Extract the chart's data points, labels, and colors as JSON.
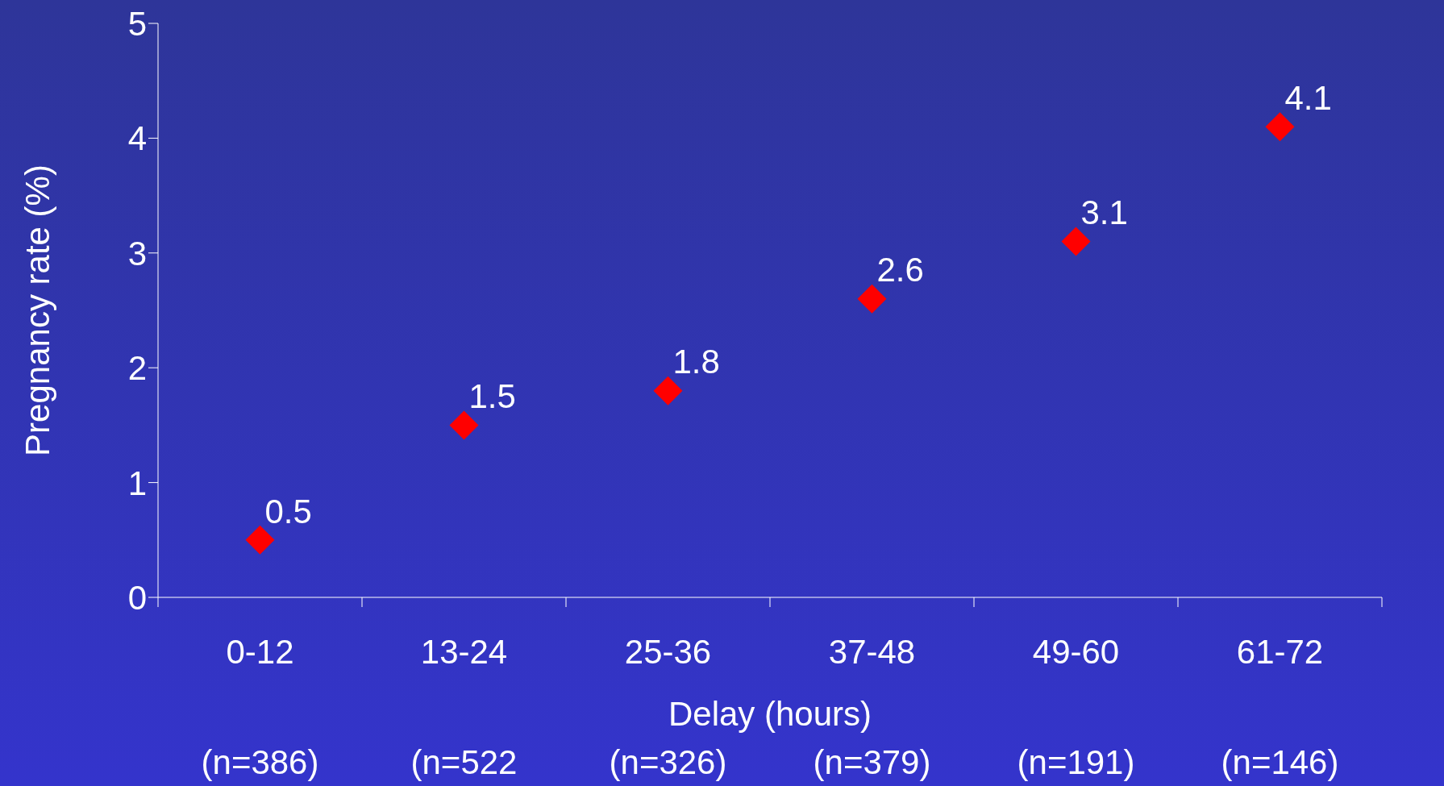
{
  "chart_data": {
    "type": "scatter",
    "xlabel": "Delay (hours)",
    "ylabel": "Pregnancy rate (%)",
    "categories": [
      "0-12",
      "13-24",
      "25-36",
      "37-48",
      "49-60",
      "61-72"
    ],
    "values": [
      0.5,
      1.5,
      1.8,
      2.6,
      3.1,
      4.1
    ],
    "color": "#ff0000",
    "marker": "diamond",
    "data_labels": true,
    "ylim": [
      0,
      5
    ],
    "yticks": [
      0,
      1,
      2,
      3,
      4,
      5
    ],
    "annotations": [
      "(n=386)",
      "(n=522",
      "(n=326)",
      "(n=379)",
      "(n=191)",
      "(n=146)"
    ]
  }
}
